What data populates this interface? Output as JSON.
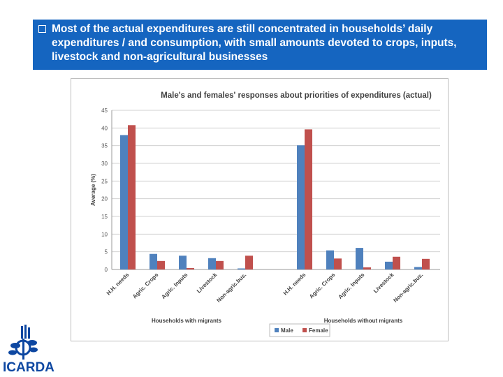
{
  "banner": {
    "text": "Most of the actual expenditures are still concentrated in households’ daily expenditures / and consumption, with small amounts devoted to crops, inputs, livestock and non-agricultural businesses"
  },
  "colors": {
    "banner": "#1565c0",
    "male": "#4f81bd",
    "female": "#c0504d",
    "logo": "#0d47a1"
  },
  "logo": {
    "text": "ICARDA",
    "icon": "icarda-logo-icon"
  },
  "chart_data": {
    "type": "bar",
    "title": "Male's and females' responses about priorities of expenditures (actual)",
    "ylabel": "Average (%)",
    "ylim": [
      0,
      45
    ],
    "yticks": [
      0,
      5,
      10,
      15,
      20,
      25,
      30,
      35,
      40,
      45
    ],
    "grid": true,
    "legend_position": "bottom",
    "groups": [
      {
        "label": "Households with migrants",
        "categories": [
          "H.H. needs",
          "Agric. Crops",
          "Agric. Inputs",
          "Livestock",
          "Non-agric.bus."
        ],
        "series": [
          {
            "name": "Male",
            "values": [
              38,
              4.4,
              3.9,
              3.2,
              0.3
            ]
          },
          {
            "name": "Female",
            "values": [
              40.8,
              2.4,
              0.4,
              2.4,
              3.9
            ]
          }
        ]
      },
      {
        "label": "Households without migrants",
        "categories": [
          "H.H. needs",
          "Agric. Crops",
          "Agric. Inputs",
          "Livestock",
          "Non-agric.bus."
        ],
        "series": [
          {
            "name": "Male",
            "values": [
              35.1,
              5.4,
              6.1,
              2.2,
              0.7
            ]
          },
          {
            "name": "Female",
            "values": [
              39.6,
              3.1,
              0.6,
              3.6,
              3.0
            ]
          }
        ]
      }
    ],
    "legend": [
      "Male",
      "Female"
    ]
  }
}
